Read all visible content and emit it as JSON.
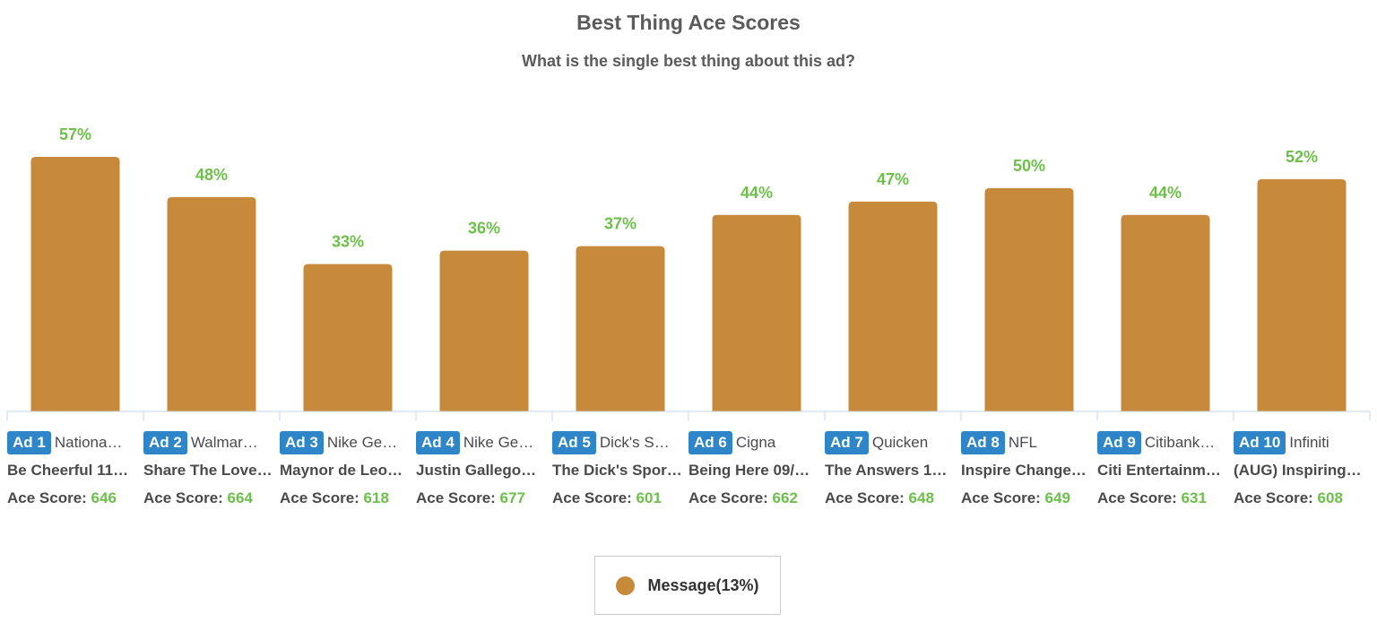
{
  "chart_data": {
    "type": "bar",
    "title": "Best Thing Ace Scores",
    "subtitle": "What is the single best thing about this ad?",
    "categories": [
      {
        "badge": "Ad 1",
        "brand": "Nationa…",
        "ad_name": "Be Cheerful 11…",
        "score_label": "Ace Score:",
        "ace_score": "646"
      },
      {
        "badge": "Ad 2",
        "brand": "Walmar…",
        "ad_name": "Share The Love…",
        "score_label": "Ace Score:",
        "ace_score": "664"
      },
      {
        "badge": "Ad 3",
        "brand": "Nike Ge…",
        "ad_name": "Maynor de Leo…",
        "score_label": "Ace Score:",
        "ace_score": "618"
      },
      {
        "badge": "Ad 4",
        "brand": "Nike Ge…",
        "ad_name": "Justin Gallego…",
        "score_label": "Ace Score:",
        "ace_score": "677"
      },
      {
        "badge": "Ad 5",
        "brand": "Dick's S…",
        "ad_name": "The Dick's Spor…",
        "score_label": "Ace Score:",
        "ace_score": "601"
      },
      {
        "badge": "Ad 6",
        "brand": "Cigna",
        "ad_name": "Being Here 09/…",
        "score_label": "Ace Score:",
        "ace_score": "662"
      },
      {
        "badge": "Ad 7",
        "brand": "Quicken",
        "ad_name": "The Answers 1…",
        "score_label": "Ace Score:",
        "ace_score": "648"
      },
      {
        "badge": "Ad 8",
        "brand": "NFL",
        "ad_name": "Inspire Change…",
        "score_label": "Ace Score:",
        "ace_score": "649"
      },
      {
        "badge": "Ad 9",
        "brand": "Citibank…",
        "ad_name": "Citi Entertainm…",
        "score_label": "Ace Score:",
        "ace_score": "631"
      },
      {
        "badge": "Ad 10",
        "brand": "Infiniti",
        "ad_name": "(AUG) Inspiring…",
        "score_label": "Ace Score:",
        "ace_score": "608"
      }
    ],
    "values": [
      57,
      48,
      33,
      36,
      37,
      44,
      47,
      50,
      44,
      52
    ],
    "value_labels": [
      "57%",
      "48%",
      "33%",
      "36%",
      "37%",
      "44%",
      "47%",
      "50%",
      "44%",
      "52%"
    ],
    "ylim": [
      0,
      60
    ],
    "bar_color": "#c68a3a",
    "label_color": "#6cc04a",
    "badge_color": "#2e86c9",
    "grid": false,
    "legend": {
      "position": "bottom-center",
      "entries": [
        {
          "label": "Message(13%)",
          "color": "#c68a3a"
        }
      ]
    }
  }
}
